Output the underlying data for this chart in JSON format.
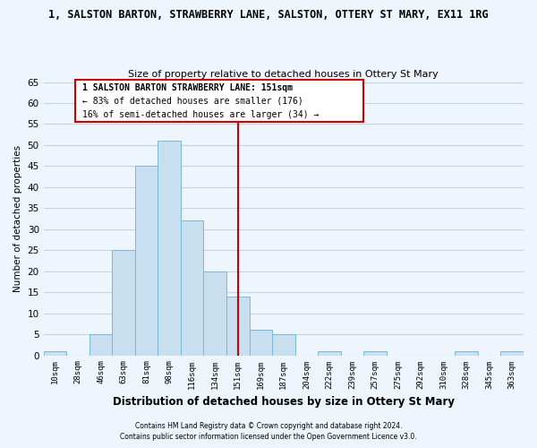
{
  "title": "1, SALSTON BARTON, STRAWBERRY LANE, SALSTON, OTTERY ST MARY, EX11 1RG",
  "subtitle": "Size of property relative to detached houses in Ottery St Mary",
  "xlabel": "Distribution of detached houses by size in Ottery St Mary",
  "ylabel": "Number of detached properties",
  "bar_labels": [
    "10sqm",
    "28sqm",
    "46sqm",
    "63sqm",
    "81sqm",
    "98sqm",
    "116sqm",
    "134sqm",
    "151sqm",
    "169sqm",
    "187sqm",
    "204sqm",
    "222sqm",
    "239sqm",
    "257sqm",
    "275sqm",
    "292sqm",
    "310sqm",
    "328sqm",
    "345sqm",
    "363sqm"
  ],
  "bar_values": [
    1,
    0,
    5,
    25,
    45,
    51,
    32,
    20,
    14,
    6,
    5,
    0,
    1,
    0,
    1,
    0,
    0,
    0,
    1,
    0,
    1
  ],
  "bar_color": "#c8dff0",
  "bar_edge_color": "#7ab8d8",
  "highlight_index": 8,
  "highlight_line_color": "#cc0000",
  "ylim": [
    0,
    65
  ],
  "yticks": [
    0,
    5,
    10,
    15,
    20,
    25,
    30,
    35,
    40,
    45,
    50,
    55,
    60,
    65
  ],
  "annotation_title": "1 SALSTON BARTON STRAWBERRY LANE: 151sqm",
  "annotation_line1": "← 83% of detached houses are smaller (176)",
  "annotation_line2": "16% of semi-detached houses are larger (34) →",
  "footer1": "Contains HM Land Registry data © Crown copyright and database right 2024.",
  "footer2": "Contains public sector information licensed under the Open Government Licence v3.0.",
  "bg_color": "#eef5fc",
  "grid_color": "#c0d4e8"
}
